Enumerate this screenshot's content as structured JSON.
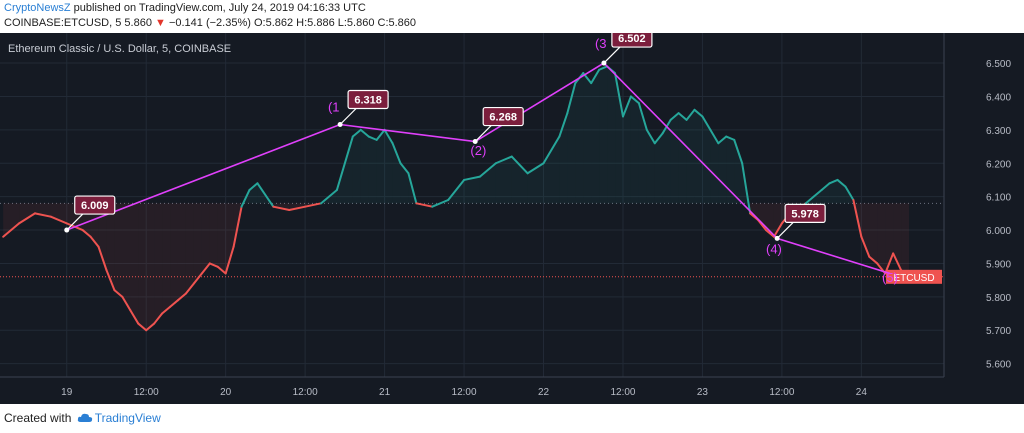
{
  "header": {
    "author": "CryptoNewsZ",
    "published_text": " published on TradingView.com, July 24, 2019 04:16:33 UTC",
    "symbol_line_prefix": "COINBASE:ETCUSD, 5  5.860 ",
    "change_arrow": "▼",
    "change_text": " −0.141 (−2.35%)",
    "ohlc_text": " O:5.862  H:5.886  L:5.860  C:5.860"
  },
  "footer": {
    "created_with": "Created with",
    "brand": "TradingView"
  },
  "colors": {
    "background": "#151a23",
    "up": "#26a69a",
    "down": "#ef5350",
    "wave": "#e040fb",
    "callout": "#7b1e3c",
    "price_tag": "#ef5350"
  },
  "chart_data": {
    "type": "line",
    "title": "Ethereum Classic / U.S. Dollar, 5, COINBASE",
    "ylim": [
      5.56,
      6.59
    ],
    "xlim": [
      18.58,
      24.52
    ],
    "y_ticks": [
      "6.500",
      "6.400",
      "6.300",
      "6.200",
      "6.100",
      "6.000",
      "5.900",
      "5.800",
      "5.700",
      "5.600"
    ],
    "y_tick_values": [
      6.5,
      6.4,
      6.3,
      6.2,
      6.1,
      6.0,
      5.9,
      5.8,
      5.7,
      5.6
    ],
    "x_ticks": [
      "19",
      "12:00",
      "20",
      "12:00",
      "21",
      "12:00",
      "22",
      "12:00",
      "23",
      "12:00",
      "24"
    ],
    "x_tick_values": [
      19,
      19.5,
      20,
      20.5,
      21,
      21.5,
      22,
      22.5,
      23,
      23.5,
      24
    ],
    "baseline": 6.08,
    "current_price": 5.86,
    "current_label": "ETCUSD",
    "current_price_label": "5.860",
    "price_series": {
      "name": "ETCUSD",
      "x": [
        18.6,
        18.7,
        18.8,
        18.9,
        19.0,
        19.1,
        19.15,
        19.2,
        19.25,
        19.3,
        19.35,
        19.4,
        19.45,
        19.5,
        19.55,
        19.6,
        19.65,
        19.7,
        19.75,
        19.8,
        19.85,
        19.9,
        19.95,
        20.0,
        20.05,
        20.1,
        20.15,
        20.2,
        20.3,
        20.4,
        20.5,
        20.6,
        20.7,
        20.8,
        20.85,
        20.9,
        20.95,
        21.0,
        21.05,
        21.1,
        21.15,
        21.2,
        21.3,
        21.4,
        21.5,
        21.6,
        21.7,
        21.8,
        21.9,
        22.0,
        22.1,
        22.15,
        22.2,
        22.25,
        22.3,
        22.35,
        22.4,
        22.45,
        22.5,
        22.55,
        22.6,
        22.65,
        22.7,
        22.75,
        22.8,
        22.85,
        22.9,
        22.95,
        23.0,
        23.05,
        23.1,
        23.15,
        23.2,
        23.25,
        23.3,
        23.35,
        23.4,
        23.45,
        23.5,
        23.55,
        23.6,
        23.65,
        23.7,
        23.75,
        23.8,
        23.85,
        23.9,
        23.95,
        24.0,
        24.05,
        24.1,
        24.15,
        24.2,
        24.25,
        24.3
      ],
      "values": [
        5.98,
        6.02,
        6.05,
        6.04,
        6.02,
        6.0,
        5.98,
        5.95,
        5.88,
        5.82,
        5.8,
        5.76,
        5.72,
        5.7,
        5.72,
        5.75,
        5.77,
        5.79,
        5.81,
        5.84,
        5.87,
        5.9,
        5.89,
        5.87,
        5.95,
        6.07,
        6.12,
        6.14,
        6.07,
        6.06,
        6.07,
        6.08,
        6.12,
        6.28,
        6.3,
        6.28,
        6.27,
        6.3,
        6.26,
        6.2,
        6.17,
        6.08,
        6.07,
        6.09,
        6.15,
        6.16,
        6.2,
        6.22,
        6.17,
        6.2,
        6.28,
        6.35,
        6.44,
        6.47,
        6.44,
        6.48,
        6.49,
        6.47,
        6.34,
        6.4,
        6.38,
        6.3,
        6.26,
        6.29,
        6.33,
        6.35,
        6.33,
        6.36,
        6.34,
        6.3,
        6.26,
        6.28,
        6.27,
        6.2,
        6.05,
        6.03,
        6.0,
        5.98,
        6.02,
        6.05,
        6.06,
        6.08,
        6.1,
        6.12,
        6.14,
        6.15,
        6.13,
        6.09,
        5.98,
        5.92,
        5.9,
        5.87,
        5.93,
        5.88,
        5.86
      ]
    },
    "wave_points": {
      "x": [
        19.0,
        20.72,
        21.57,
        22.38,
        23.47,
        24.18
      ],
      "values": [
        6.0,
        6.316,
        6.265,
        6.5,
        5.975,
        5.87
      ]
    },
    "wave_labels": [
      {
        "text": "(1",
        "x": 20.68,
        "y": 6.355
      },
      {
        "text": "(2)",
        "x": 21.59,
        "y": 6.225
      },
      {
        "text": "(3",
        "x": 22.36,
        "y": 6.545
      },
      {
        "text": "(4)",
        "x": 23.45,
        "y": 5.93
      },
      {
        "text": "(5)",
        "x": 24.18,
        "y": 5.845
      }
    ],
    "callouts": [
      {
        "text": "6.009",
        "x": 19.0,
        "y": 6.0
      },
      {
        "text": "6.318",
        "x": 20.72,
        "y": 6.316
      },
      {
        "text": "6.268",
        "x": 21.57,
        "y": 6.265
      },
      {
        "text": "6.502",
        "x": 22.38,
        "y": 6.5
      },
      {
        "text": "5.978",
        "x": 23.47,
        "y": 5.975
      }
    ]
  }
}
